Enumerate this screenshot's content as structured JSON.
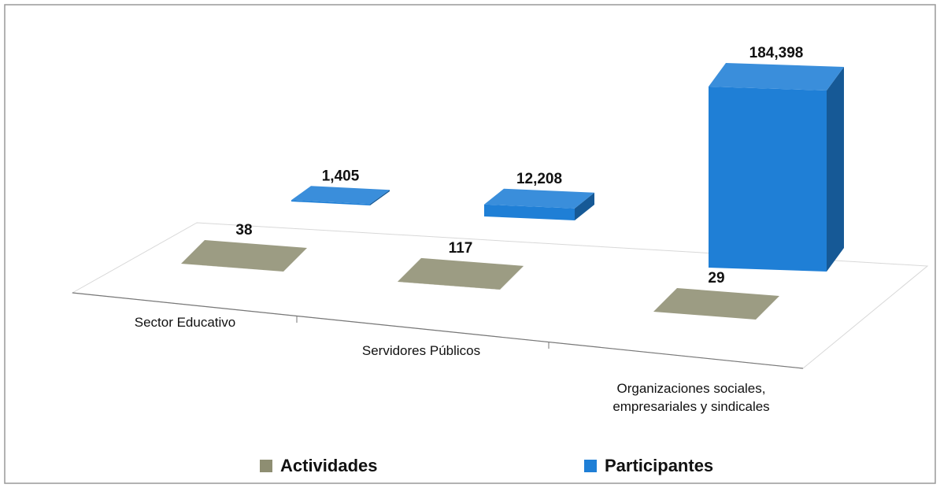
{
  "chart_data": {
    "type": "bar3d",
    "categories": [
      "Sector Educativo",
      "Servidores Públicos",
      "Organizaciones sociales, empresariales y sindicales"
    ],
    "series": [
      {
        "name": "Actividades",
        "color": "#8e8e72",
        "values": [
          38,
          117,
          29
        ],
        "value_labels": [
          "38",
          "117",
          "29"
        ]
      },
      {
        "name": "Participantes",
        "color": "#1f7fd6",
        "values": [
          1405,
          12208,
          184398
        ],
        "value_labels": [
          "1,405",
          "12,208",
          "184,398"
        ]
      }
    ]
  }
}
